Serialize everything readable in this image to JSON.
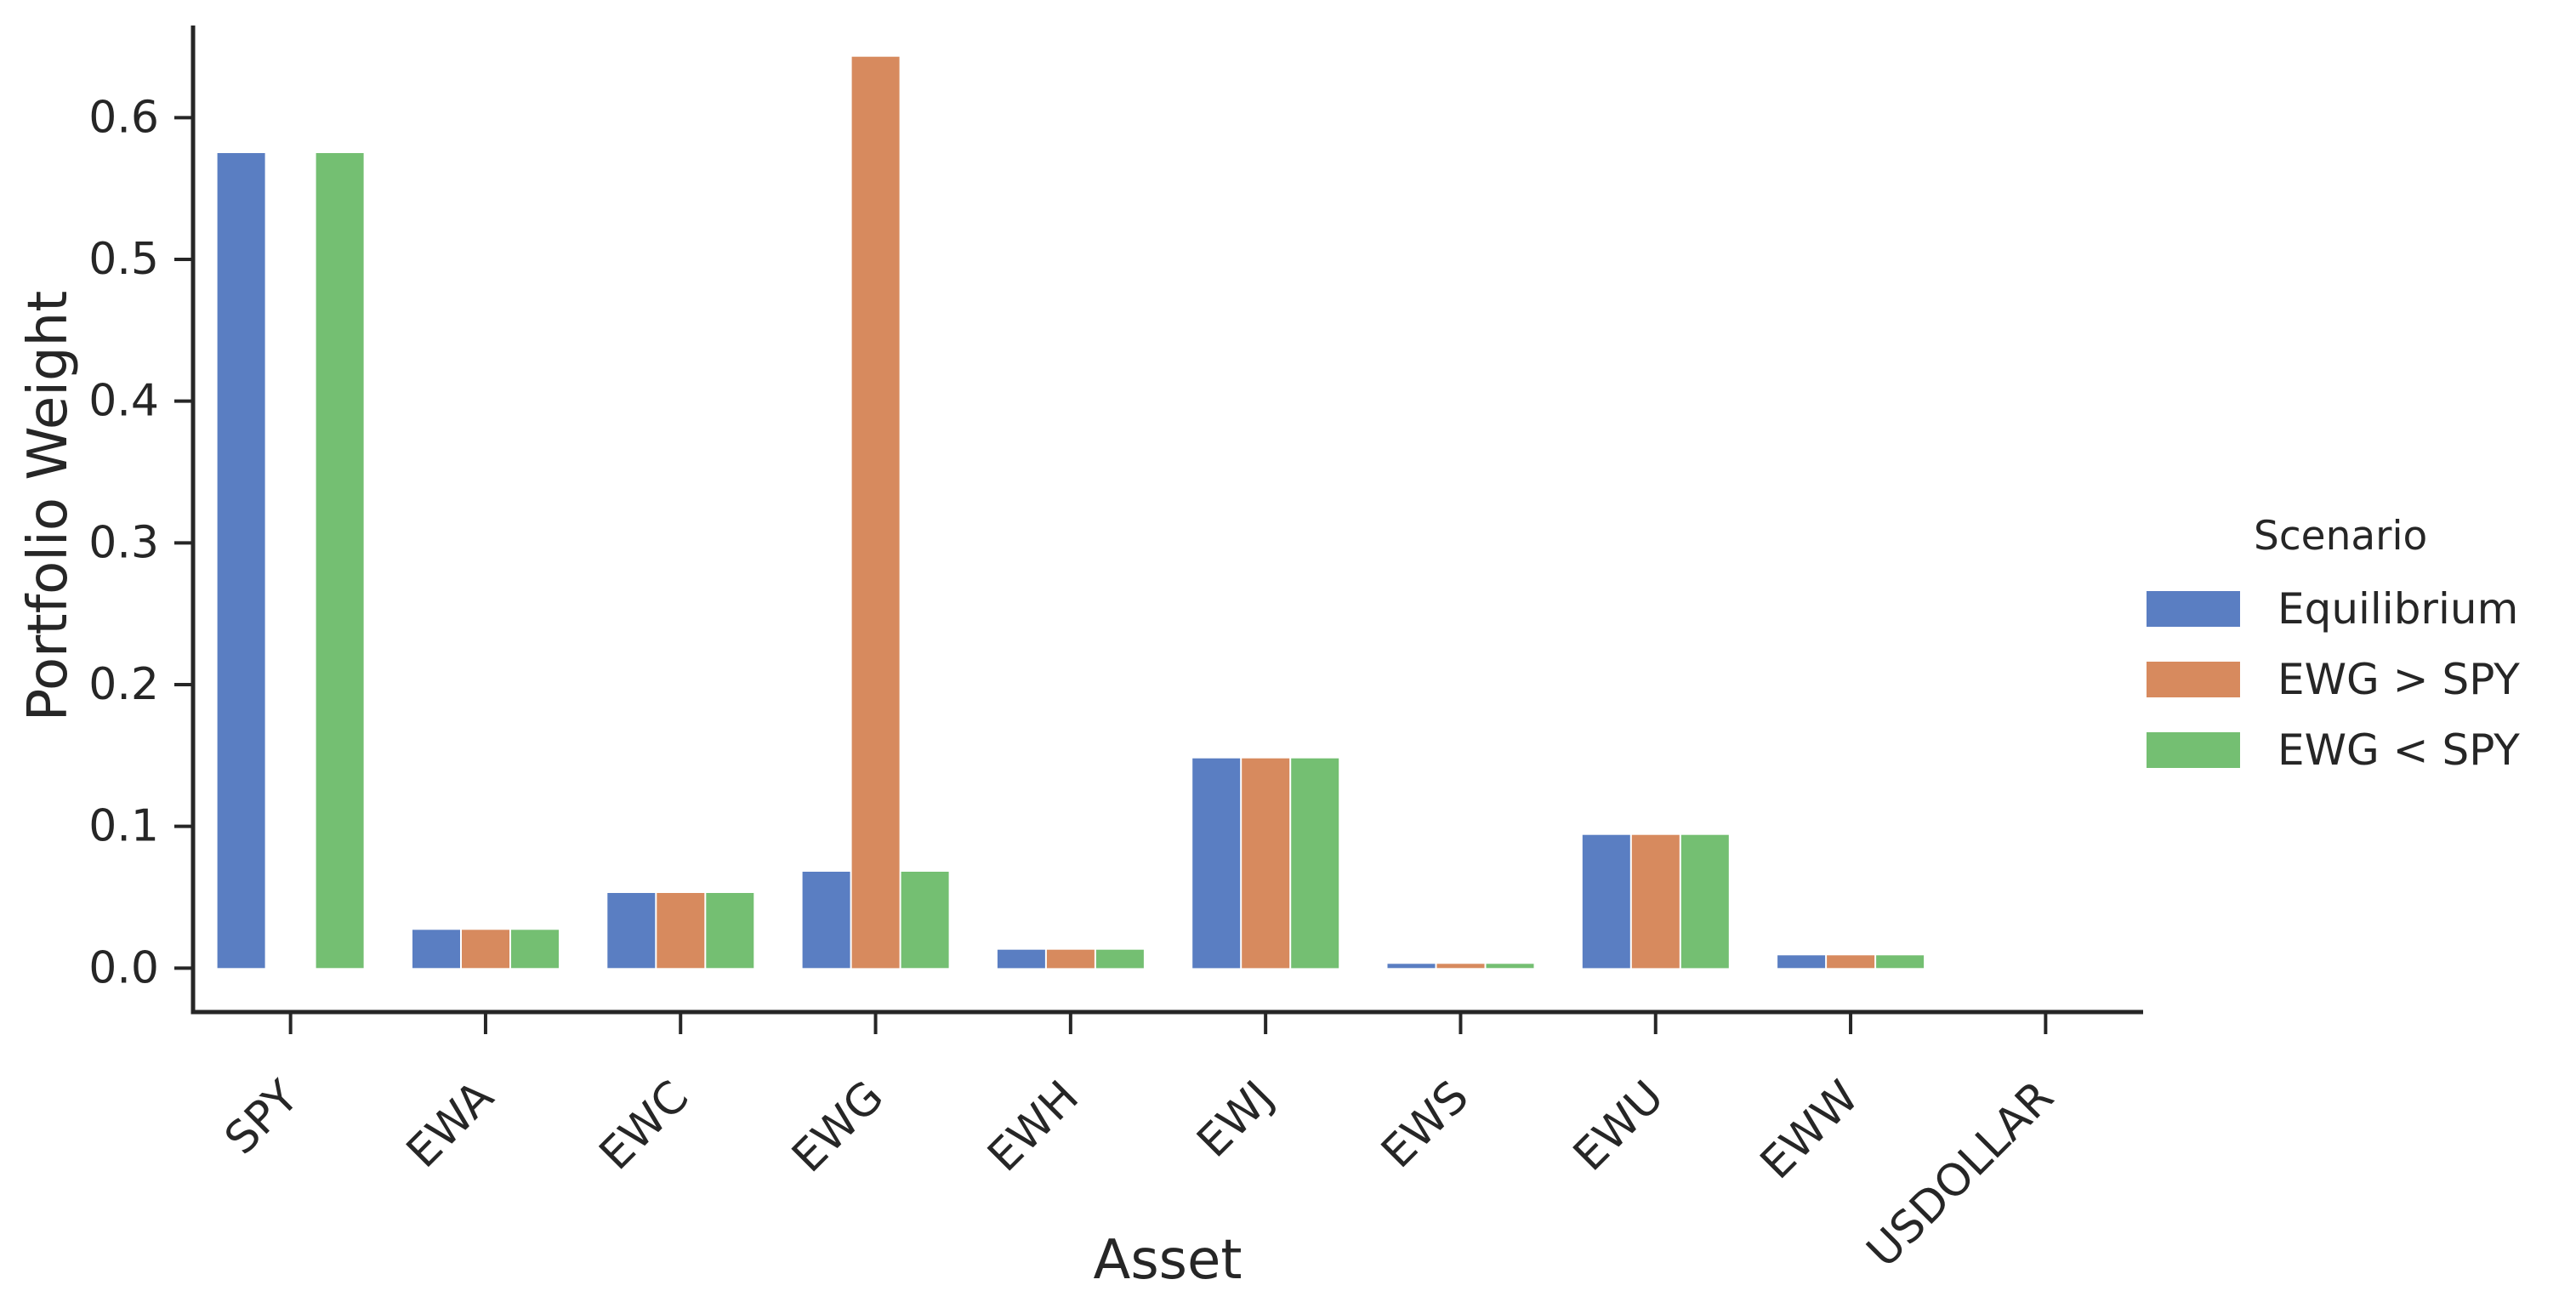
{
  "chart_data": {
    "type": "bar",
    "title": "",
    "xlabel": "Asset",
    "ylabel": "Portfolio Weight",
    "categories": [
      "SPY",
      "EWA",
      "EWC",
      "EWG",
      "EWH",
      "EWJ",
      "EWS",
      "EWU",
      "EWW",
      "USDOLLAR"
    ],
    "series": [
      {
        "name": "Equilibrium",
        "color": "#5a7ec2",
        "values": [
          0.575,
          0.027,
          0.053,
          0.068,
          0.013,
          0.148,
          0.003,
          0.094,
          0.009,
          0.0
        ]
      },
      {
        "name": "EWG > SPY",
        "color": "#d78a5e",
        "values": [
          0.0,
          0.027,
          0.053,
          0.643,
          0.013,
          0.148,
          0.003,
          0.094,
          0.009,
          0.0
        ]
      },
      {
        "name": "EWG < SPY",
        "color": "#74bf72",
        "values": [
          0.575,
          0.027,
          0.053,
          0.068,
          0.013,
          0.148,
          0.003,
          0.094,
          0.009,
          0.0
        ]
      }
    ],
    "ytick_values": [
      0.0,
      0.1,
      0.2,
      0.3,
      0.4,
      0.5,
      0.6
    ],
    "ytick_labels": [
      "0.0",
      "0.1",
      "0.2",
      "0.3",
      "0.4",
      "0.5",
      "0.6"
    ],
    "ylim": [
      -0.031,
      0.665
    ],
    "grid": false,
    "legend": {
      "title": "Scenario",
      "position": "right"
    },
    "axis_color": "#262626"
  }
}
